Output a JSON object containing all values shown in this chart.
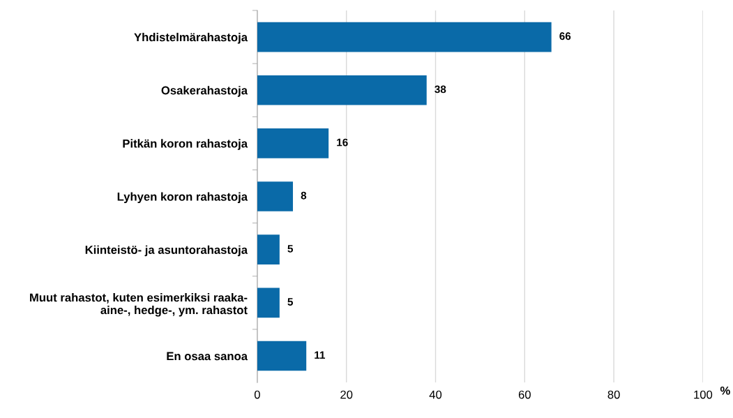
{
  "chart_data": {
    "type": "bar",
    "orientation": "horizontal",
    "categories": [
      "Yhdistelmärahastoja",
      "Osakerahastoja",
      "Pitkän koron rahastoja",
      "Lyhyen koron rahastoja",
      "Kiinteistö- ja asuntorahastoja",
      "Muut rahastot, kuten esimerkiksi raaka-\naine-, hedge-, ym. rahastot",
      "En osaa sanoa"
    ],
    "values": [
      66,
      38,
      16,
      8,
      5,
      5,
      11
    ],
    "color": "#0a6aa8",
    "xlabel": "%",
    "xlim": [
      0,
      100
    ],
    "xticks": [
      0,
      20,
      40,
      60,
      80,
      100
    ],
    "grid": "x",
    "data_labels": true
  }
}
